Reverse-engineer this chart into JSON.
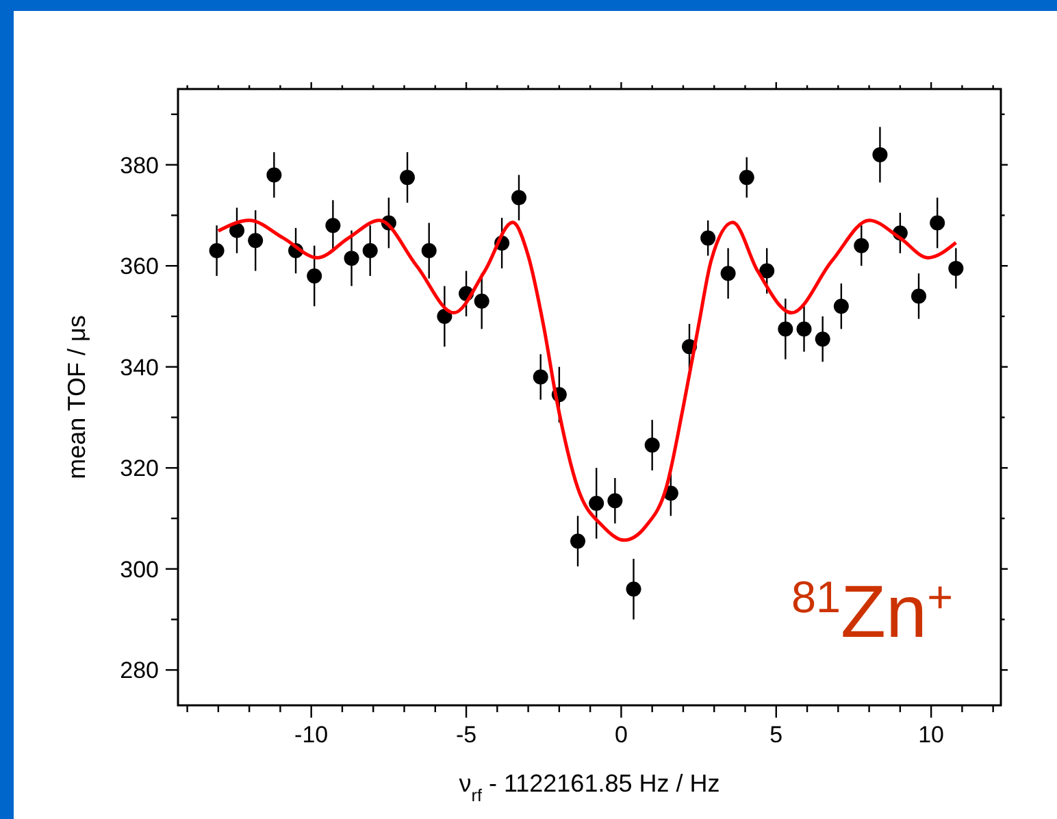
{
  "chart_data": {
    "type": "scatter",
    "xlabel": "ν$_{rf}$ - 1122161.85 Hz / Hz",
    "ylabel": "mean TOF / μs",
    "annotations": [
      "$^{81}$Zn$^{+}$"
    ],
    "xlim": [
      -14.3,
      12.25
    ],
    "ylim": [
      273,
      395
    ],
    "xticks": [
      {
        "value": -14,
        "label": null
      },
      {
        "value": -13,
        "label": null
      },
      {
        "value": -12,
        "label": null
      },
      {
        "value": -11,
        "label": null
      },
      -10,
      {
        "value": -9,
        "label": null
      },
      {
        "value": -8,
        "label": null
      },
      {
        "value": -7,
        "label": null
      },
      {
        "value": -6,
        "label": null
      },
      -5,
      {
        "value": -4,
        "label": null
      },
      {
        "value": -3,
        "label": null
      },
      {
        "value": -2,
        "label": null
      },
      {
        "value": -1,
        "label": null
      },
      0,
      {
        "value": 1,
        "label": null
      },
      {
        "value": 2,
        "label": null
      },
      {
        "value": 3,
        "label": null
      },
      {
        "value": 4,
        "label": null
      },
      5,
      {
        "value": 6,
        "label": null
      },
      {
        "value": 7,
        "label": null
      },
      {
        "value": 8,
        "label": null
      },
      {
        "value": 9,
        "label": null
      },
      10,
      {
        "value": 11,
        "label": null
      },
      {
        "value": 12,
        "label": null
      }
    ],
    "yticks": [
      280,
      {
        "value": 290,
        "label": null
      },
      300,
      {
        "value": 310,
        "label": null
      },
      320,
      {
        "value": 330,
        "label": null
      },
      340,
      {
        "value": 350,
        "label": null
      },
      360,
      {
        "value": 370,
        "label": null
      },
      380,
      {
        "value": 390,
        "label": null
      }
    ],
    "grid": false,
    "series": [
      {
        "color": "#000000",
        "marker": "circle",
        "x": [
          -13.05,
          -12.4,
          -11.8,
          -11.2,
          -10.5,
          -9.9,
          -9.3,
          -8.7,
          -8.1,
          -7.5,
          -6.9,
          -6.2,
          -5.7,
          -5.0,
          -4.5,
          -3.85,
          -3.3,
          -2.6,
          -2.0,
          -1.4,
          -0.8,
          -0.2,
          0.4,
          1.0,
          1.6,
          2.2,
          2.8,
          3.45,
          4.05,
          4.7,
          5.3,
          5.9,
          6.5,
          7.1,
          7.75,
          8.35,
          9.0,
          9.6,
          10.2,
          10.8
        ],
        "values": [
          363,
          367,
          365,
          378,
          363,
          358,
          368,
          361.5,
          363,
          368.5,
          377.5,
          363,
          350,
          354.5,
          353,
          364.5,
          373.5,
          338,
          334.5,
          305.5,
          313,
          313.5,
          296,
          324.5,
          315,
          344,
          365.5,
          358.5,
          377.5,
          359,
          347.5,
          347.5,
          345.5,
          352,
          364,
          382,
          366.5,
          354,
          368.5,
          359.5
        ],
        "errors": [
          5,
          4.5,
          6,
          4.5,
          4.5,
          6,
          5,
          5.5,
          5,
          5,
          5,
          5.5,
          6,
          4.5,
          5.5,
          5,
          4.5,
          4.5,
          5.5,
          5,
          7,
          4.5,
          6,
          5,
          4.5,
          4.5,
          3.5,
          5,
          4,
          4.5,
          6,
          4.5,
          4.5,
          4.5,
          4,
          5.5,
          4,
          4.5,
          5,
          4
        ]
      },
      {
        "type": "line",
        "color": "#ff0000",
        "marker": "none",
        "line_style": "solid",
        "x": [
          -13.0,
          -12.0,
          -10.9,
          -9.8,
          -8.8,
          -7.8,
          -6.6,
          -5.4,
          -4.4,
          -3.5,
          -3.0,
          -2.5,
          -2.1,
          -1.4,
          -0.6,
          0.1,
          0.8,
          1.45,
          2.0,
          2.5,
          2.9,
          3.6,
          4.4,
          5.5,
          6.8,
          8.0,
          9.0,
          9.9,
          10.8
        ],
        "values": [
          366.9,
          369,
          365.5,
          361.6,
          365.5,
          369,
          360,
          350.7,
          359,
          368.6,
          362,
          348,
          334,
          316,
          308.5,
          305.7,
          308.5,
          316,
          332,
          348.3,
          361,
          368.6,
          359,
          350.7,
          361,
          369,
          365.5,
          361.6,
          364.6
        ]
      }
    ]
  }
}
